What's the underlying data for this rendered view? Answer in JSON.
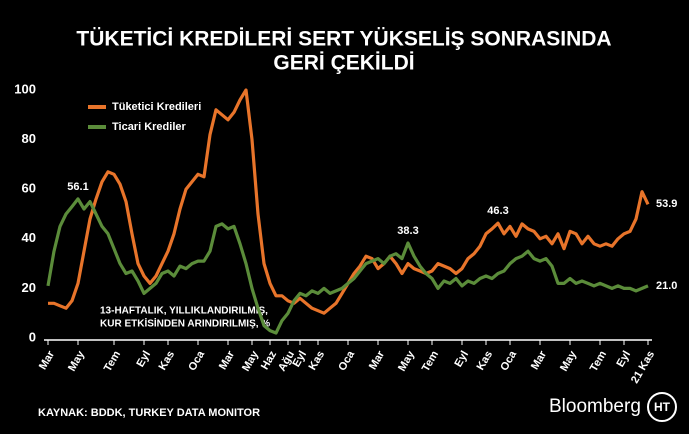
{
  "chart_data": {
    "type": "line",
    "title_lines": [
      "TÜKETİCİ KREDİLERİ SERT YÜKSELİŞ SONRASINDA",
      "GERİ ÇEKİLDİ"
    ],
    "note_lines": [
      "13-HAFTALIK, YILLIKLANDIRILMIŞ,",
      "KUR ETKİSİNDEN ARINDIRILMIŞ, %"
    ],
    "source": "KAYNAK: BDDK, TURKEY DATA MONITOR",
    "brand": "Bloomberg",
    "logo": "HT",
    "legend": "upper left",
    "grid": false,
    "ylim": [
      0,
      100
    ],
    "yticks": [
      0,
      20,
      40,
      60,
      80,
      100
    ],
    "categories": [
      "Mar",
      null,
      null,
      null,
      null,
      "May",
      null,
      null,
      null,
      null,
      null,
      "Tem",
      null,
      null,
      null,
      null,
      "Eyl",
      null,
      null,
      null,
      "Kas",
      null,
      null,
      null,
      null,
      "Oca",
      null,
      null,
      null,
      null,
      "Mar",
      null,
      null,
      null,
      "May",
      null,
      null,
      "Haz",
      null,
      null,
      "Ağu",
      null,
      "Eyl",
      null,
      null,
      "Kas",
      null,
      null,
      null,
      null,
      "Oca",
      null,
      null,
      null,
      null,
      "Mar",
      null,
      null,
      null,
      null,
      "May",
      null,
      null,
      null,
      "Tem",
      null,
      null,
      null,
      null,
      "Eyl",
      null,
      null,
      null,
      "Kas",
      null,
      null,
      null,
      "Oca",
      null,
      null,
      null,
      null,
      "Mar",
      null,
      null,
      null,
      null,
      "May",
      null,
      null,
      null,
      null,
      "Tem",
      null,
      null,
      null,
      "Eyl",
      null,
      null,
      null,
      "21 Kas"
    ],
    "series": [
      {
        "name": "Tüketici Kredileri",
        "color": "#e8742a",
        "values": [
          14,
          14,
          13,
          12,
          15,
          22,
          35,
          48,
          56,
          63,
          67,
          66,
          62,
          55,
          42,
          30,
          25,
          22,
          25,
          30,
          35,
          42,
          52,
          60,
          63,
          66,
          65,
          82,
          92,
          90,
          88,
          91,
          96,
          100,
          80,
          50,
          30,
          22,
          17,
          17,
          15,
          14,
          16,
          14,
          12,
          11,
          10,
          12,
          14,
          18,
          22,
          26,
          29,
          33,
          32,
          28,
          30,
          33,
          30,
          26,
          30,
          28,
          27,
          26,
          27,
          30,
          29,
          28,
          26,
          28,
          32,
          34,
          37,
          42,
          44,
          46.3,
          42,
          45,
          41,
          46,
          44,
          43,
          40,
          41,
          38,
          42,
          36,
          43,
          42,
          38,
          41,
          38,
          37,
          38,
          37,
          40,
          42,
          43,
          48,
          59,
          53.9
        ],
        "value_labels": [
          null,
          null,
          null,
          null,
          null,
          null,
          null,
          null,
          null,
          null,
          null,
          null,
          null,
          null,
          null,
          null,
          null,
          null,
          null,
          null,
          null,
          null,
          null,
          null,
          null,
          null,
          null,
          null,
          null,
          null,
          null,
          null,
          null,
          null,
          null,
          null,
          null,
          null,
          null,
          null,
          null,
          null,
          null,
          null,
          null,
          null,
          null,
          null,
          null,
          null,
          null,
          null,
          null,
          null,
          null,
          null,
          null,
          null,
          null,
          null,
          null,
          null,
          null,
          null,
          null,
          null,
          null,
          null,
          null,
          null,
          null,
          null,
          null,
          null,
          null,
          "46.3",
          null,
          null,
          null,
          null,
          null,
          null,
          null,
          null,
          null,
          null,
          null,
          null,
          null,
          null,
          null,
          null,
          null,
          null,
          null,
          null,
          null,
          null,
          null,
          null,
          "53.9"
        ]
      },
      {
        "name": "Ticari Krediler",
        "color": "#5b8c3a",
        "values": [
          21,
          35,
          45,
          50,
          53,
          56.1,
          52,
          55,
          50,
          45,
          42,
          36,
          30,
          26,
          27,
          23,
          18,
          20,
          22,
          26,
          27,
          25,
          29,
          28,
          30,
          31,
          31,
          35,
          45,
          46,
          44,
          45,
          38,
          30,
          20,
          12,
          5,
          3,
          2,
          7,
          10,
          15,
          18,
          17,
          19,
          18,
          20,
          18,
          19,
          20,
          22,
          24,
          27,
          30,
          31,
          32,
          30,
          33,
          34,
          32,
          38.3,
          33,
          29,
          26,
          24,
          20,
          23,
          22,
          24,
          21,
          23,
          22,
          24,
          25,
          24,
          26,
          27,
          30,
          32,
          33,
          35,
          32,
          31,
          32,
          29,
          22,
          22,
          24,
          22,
          23,
          22,
          21,
          22,
          21,
          20,
          21,
          20,
          20,
          19,
          20,
          21.0
        ],
        "value_labels": [
          null,
          null,
          null,
          null,
          null,
          "56.1",
          null,
          null,
          null,
          null,
          null,
          null,
          null,
          null,
          null,
          null,
          null,
          null,
          null,
          null,
          null,
          null,
          null,
          null,
          null,
          null,
          null,
          null,
          null,
          null,
          null,
          null,
          null,
          null,
          null,
          null,
          null,
          null,
          null,
          null,
          null,
          null,
          null,
          null,
          null,
          null,
          null,
          null,
          null,
          null,
          null,
          null,
          null,
          null,
          null,
          null,
          null,
          null,
          null,
          null,
          "38.3",
          null,
          null,
          null,
          null,
          null,
          null,
          null,
          null,
          null,
          null,
          null,
          null,
          null,
          null,
          null,
          null,
          null,
          null,
          null,
          null,
          null,
          null,
          null,
          null,
          null,
          null,
          null,
          null,
          null,
          null,
          null,
          null,
          null,
          null,
          null,
          null,
          null,
          null,
          null,
          "21.0"
        ]
      }
    ]
  }
}
